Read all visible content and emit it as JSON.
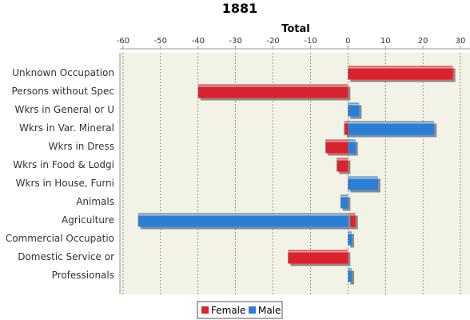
{
  "colors": {
    "Female": "#d9232e",
    "Male": "#2a7fd4"
  },
  "chart_data": {
    "type": "bar",
    "orientation": "horizontal",
    "title": "1881",
    "xlabel": "Total",
    "ylabel": "",
    "xlim": [
      -60,
      30
    ],
    "xticks": [
      -60,
      -50,
      -40,
      -30,
      -20,
      -10,
      0,
      10,
      20,
      30
    ],
    "grid": true,
    "legend_position": "bottom",
    "categories": [
      "Unknown Occupation",
      "Persons without Spec",
      "Wkrs in General or U",
      "Wkrs in Var. Mineral",
      "Wkrs in Dress",
      "Wkrs in Food & Lodgi",
      "Wkrs in House, Furni",
      "Animals",
      "Agriculture",
      "Commercial Occupatio",
      "Domestic Service or ",
      "Professionals"
    ],
    "series": [
      {
        "name": "Female",
        "values": [
          28,
          -40,
          0,
          -1,
          -6,
          -3,
          0,
          0,
          2,
          0,
          -16,
          0
        ]
      },
      {
        "name": "Male",
        "values": [
          0,
          0,
          3,
          23,
          2,
          0,
          8,
          -2,
          -56,
          1,
          0,
          1
        ]
      }
    ]
  }
}
